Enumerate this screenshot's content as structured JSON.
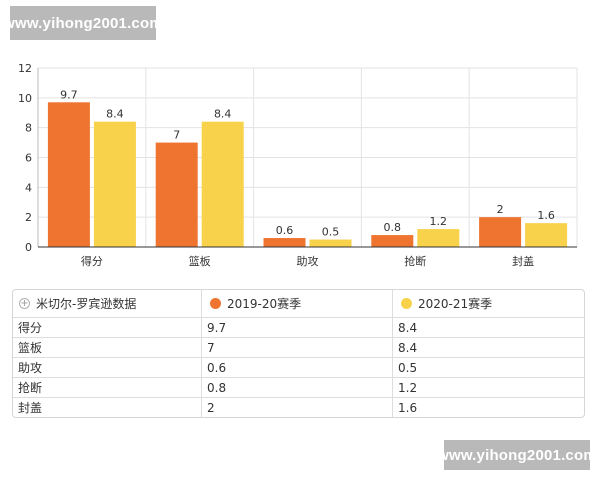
{
  "watermark": {
    "text": "www.yihong2001.com"
  },
  "chart_data": {
    "type": "bar",
    "categories": [
      "得分",
      "篮板",
      "助攻",
      "抢断",
      "封盖"
    ],
    "series": [
      {
        "name": "2019-20赛季",
        "color": "#EE7430",
        "values": [
          9.7,
          7,
          0.6,
          0.8,
          2
        ],
        "labels": [
          "9.7",
          "7",
          "0.6",
          "0.8",
          "2"
        ]
      },
      {
        "name": "2020-21赛季",
        "color": "#F7D24A",
        "values": [
          8.4,
          8.4,
          0.5,
          1.2,
          1.6
        ],
        "labels": [
          "8.4",
          "8.4",
          "0.5",
          "1.2",
          "1.6"
        ]
      }
    ],
    "ylim": [
      0,
      12
    ],
    "yticks": [
      "0",
      "2",
      "4",
      "6",
      "8",
      "10",
      "12"
    ],
    "grid": true
  },
  "table": {
    "title": "米切尔-罗宾逊数据",
    "rows": [
      {
        "label": "得分",
        "v1": "9.7",
        "v2": "8.4"
      },
      {
        "label": "篮板",
        "v1": "7",
        "v2": "8.4"
      },
      {
        "label": "助攻",
        "v1": "0.6",
        "v2": "0.5"
      },
      {
        "label": "抢断",
        "v1": "0.8",
        "v2": "1.2"
      },
      {
        "label": "封盖",
        "v1": "2",
        "v2": "1.6"
      }
    ]
  }
}
